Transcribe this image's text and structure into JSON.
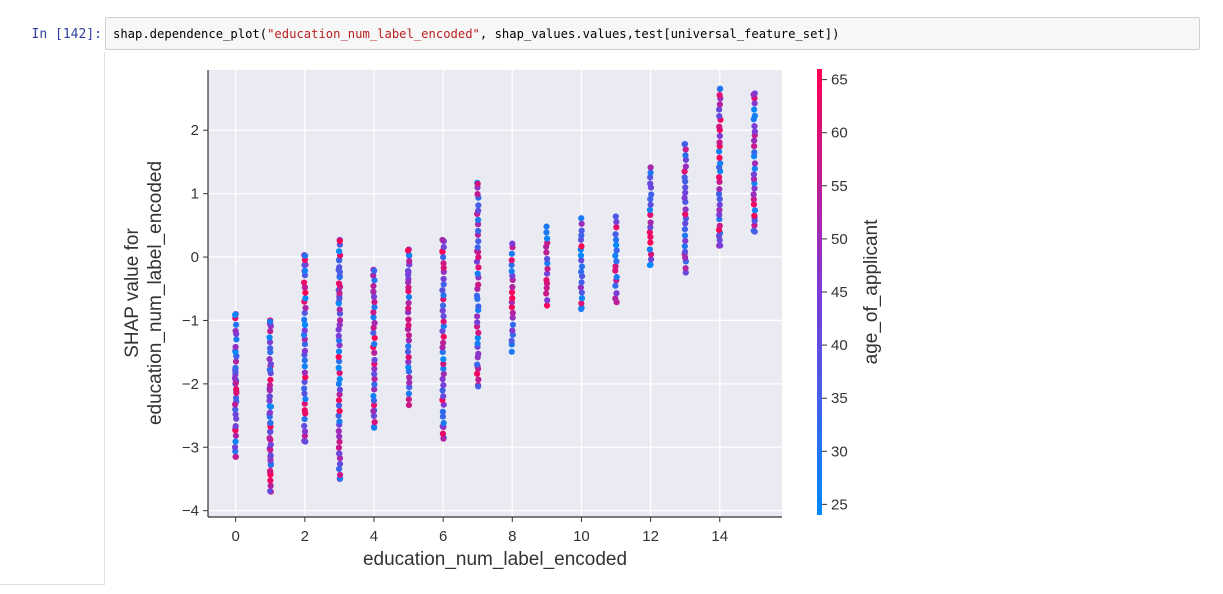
{
  "cell": {
    "prompt": "In [142]:",
    "code": {
      "prefix": "shap.dependence_plot(",
      "string": "\"education_num_label_encoded\"",
      "suffix": ", shap_values.values,test[universal_feature_set])"
    }
  },
  "chart_data": {
    "type": "scatter",
    "xlabel": "education_num_label_encoded",
    "ylabel_lines": [
      "SHAP value for",
      "education_num_label_encoded"
    ],
    "colorbar_label": "age_of_applicant",
    "xlim": [
      -0.8,
      15.8
    ],
    "ylim": [
      -4.1,
      2.95
    ],
    "xticks": [
      0,
      2,
      4,
      6,
      8,
      10,
      12,
      14
    ],
    "yticks": [
      -4,
      -3,
      -2,
      -1,
      0,
      1,
      2
    ],
    "colorbar_range": [
      24,
      66
    ],
    "colorbar_ticks": [
      25,
      30,
      35,
      40,
      45,
      50,
      55,
      60,
      65
    ],
    "colorscale": [
      "#008afb",
      "#7e3ad6",
      "#ff0052"
    ],
    "grid": true,
    "background": "#eaeaf2",
    "columns": [
      {
        "x": 0,
        "ymin": -3.15,
        "ymax": -0.9,
        "ys": [
          -0.9,
          -1.48,
          -1.56,
          -1.78,
          -1.85,
          -1.95,
          -2.0,
          -2.12,
          -2.28,
          -2.72,
          -3.15
        ]
      },
      {
        "x": 1,
        "ymin": -3.7,
        "ymax": -1.0,
        "ys": [
          -1.0,
          -1.05,
          -1.72,
          -1.78,
          -2.08,
          -2.2,
          -2.35,
          -2.48,
          -2.62,
          -2.75,
          -2.88,
          -3.02,
          -3.15,
          -3.28,
          -3.4,
          -3.7
        ]
      },
      {
        "x": 2,
        "ymin": -2.9,
        "ymax": 0.03,
        "ys": [
          0.03,
          -0.12,
          -0.22,
          -0.48,
          -2.9
        ]
      },
      {
        "x": 3,
        "ymin": -3.5,
        "ymax": 0.27,
        "ys": [
          0.27,
          -0.04,
          -0.2,
          -0.3,
          -0.52,
          -0.62,
          -0.72,
          -3.1,
          -3.5
        ]
      },
      {
        "x": 4,
        "ymin": -2.68,
        "ymax": -0.2,
        "ys": [
          -0.2,
          -0.55,
          -2.42,
          -2.68
        ]
      },
      {
        "x": 5,
        "ymin": -2.32,
        "ymax": 0.12,
        "ys": [
          0.12,
          0.02,
          -0.22,
          -0.35
        ]
      },
      {
        "x": 6,
        "ymin": -2.85,
        "ymax": 0.25,
        "ys": [
          0.25,
          0.08,
          -2.68,
          -2.85
        ]
      },
      {
        "x": 7,
        "ymin": -2.02,
        "ymax": 1.17,
        "ys": [
          1.17,
          0.08,
          -1.72,
          -2.02
        ]
      },
      {
        "x": 8,
        "ymin": -1.48,
        "ymax": 0.22,
        "ys": []
      },
      {
        "x": 9,
        "ymin": -0.75,
        "ymax": 0.47,
        "ys": []
      },
      {
        "x": 10,
        "ymin": -0.82,
        "ymax": 0.6,
        "ys": [
          -0.82
        ]
      },
      {
        "x": 11,
        "ymin": -0.72,
        "ymax": 0.62,
        "ys": []
      },
      {
        "x": 12,
        "ymin": -0.12,
        "ymax": 1.42,
        "ys": [
          -0.12
        ]
      },
      {
        "x": 13,
        "ymin": -0.25,
        "ymax": 1.78,
        "ys": [
          0.05,
          1.78
        ]
      },
      {
        "x": 14,
        "ymin": 0.18,
        "ymax": 2.65,
        "ys": [
          0.18,
          0.38,
          2.65
        ]
      },
      {
        "x": 15,
        "ymin": 0.4,
        "ymax": 2.58,
        "ys": [
          0.4,
          0.62,
          2.58
        ]
      }
    ]
  }
}
